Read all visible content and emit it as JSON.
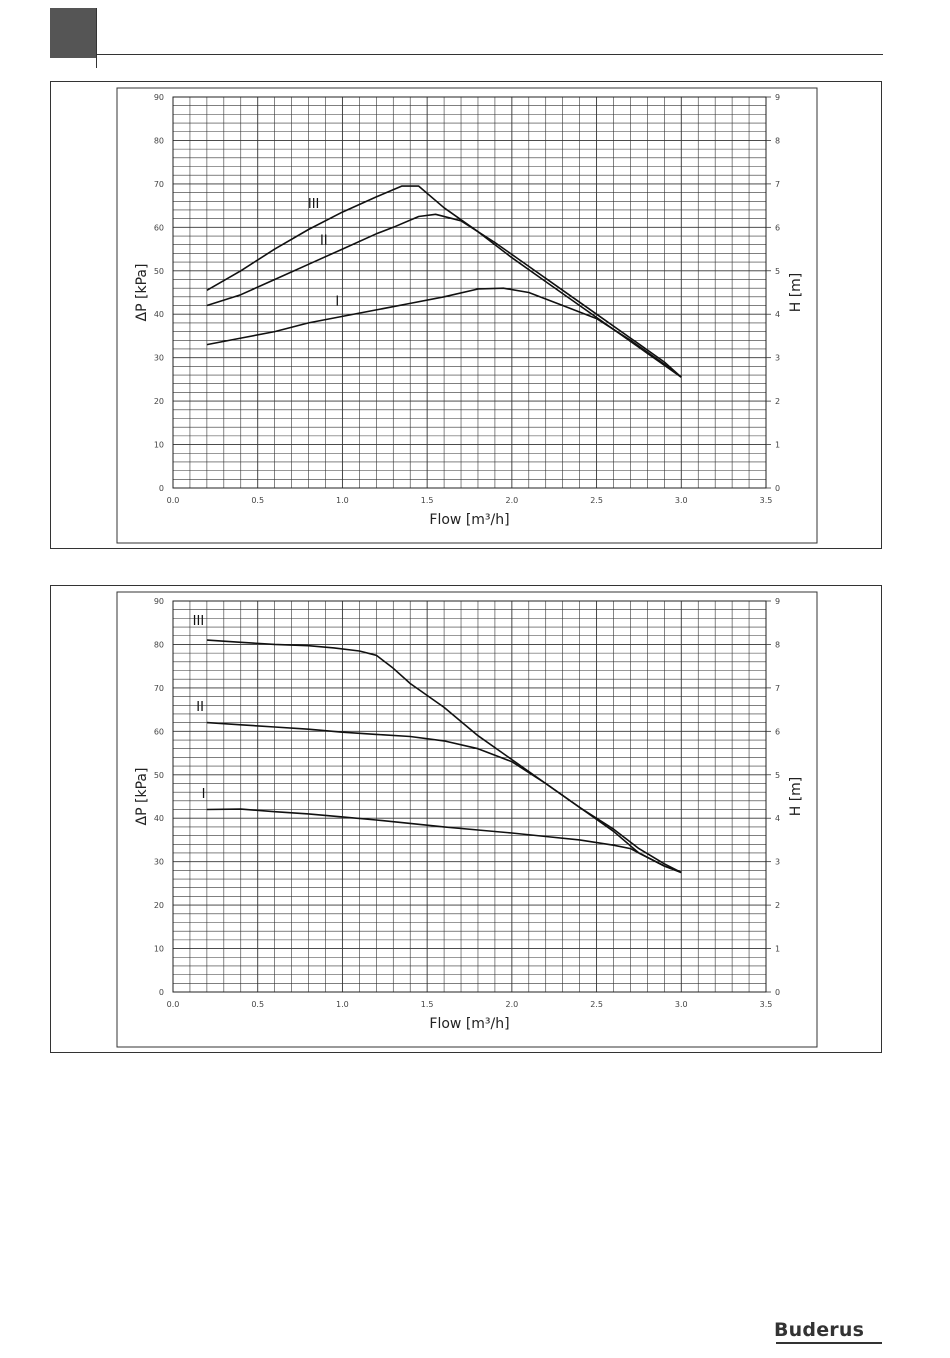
{
  "brand": {
    "name": "Buderus"
  },
  "chart_data": [
    {
      "type": "line",
      "title": "",
      "xlabel": "Flow [m³/h]",
      "ylabel": "ΔP [kPa]",
      "y2label": "H [m]",
      "xlim": [
        0,
        3.5
      ],
      "ylim": [
        0,
        90
      ],
      "y2lim": [
        0,
        9
      ],
      "xticks": [
        "0.0",
        "0.5",
        "1.0",
        "1.5",
        "2.0",
        "2.5",
        "3.0",
        "3.5"
      ],
      "yticks": [
        "0",
        "10",
        "20",
        "30",
        "40",
        "50",
        "60",
        "70",
        "80",
        "90"
      ],
      "y2ticks": [
        "0",
        "1",
        "2",
        "3",
        "4",
        "5",
        "6",
        "7",
        "8",
        "9"
      ],
      "grid": true,
      "series": [
        {
          "name": "III",
          "x": [
            0.2,
            0.4,
            0.6,
            0.8,
            1.0,
            1.2,
            1.35,
            1.45,
            1.6,
            1.8,
            2.0,
            2.2,
            2.4,
            2.6,
            2.8,
            3.0
          ],
          "y": [
            45.5,
            50,
            55,
            59.5,
            63.5,
            67,
            69.5,
            69.5,
            64.5,
            59,
            53,
            47.5,
            42,
            36.5,
            31,
            25.5
          ]
        },
        {
          "name": "II",
          "x": [
            0.2,
            0.4,
            0.6,
            0.8,
            1.0,
            1.2,
            1.3,
            1.45,
            1.55,
            1.7,
            1.9,
            2.1,
            2.3,
            2.5,
            2.7,
            2.9,
            3.0
          ],
          "y": [
            42,
            44.5,
            48,
            51.5,
            55,
            58.5,
            60,
            62.5,
            63,
            61.5,
            56.5,
            51,
            45.5,
            40,
            34.5,
            29,
            25.5
          ]
        },
        {
          "name": "I",
          "x": [
            0.2,
            0.4,
            0.6,
            0.8,
            1.0,
            1.2,
            1.4,
            1.6,
            1.8,
            1.95,
            2.1,
            2.3,
            2.5,
            2.7,
            2.9,
            3.0
          ],
          "y": [
            33,
            34.5,
            36,
            38,
            39.5,
            41,
            42.5,
            44,
            45.8,
            46,
            45,
            42,
            39,
            34,
            28.5,
            25.5
          ]
        }
      ],
      "annotations": [
        {
          "text": "III",
          "x": 0.83,
          "y": 64.5
        },
        {
          "text": "II",
          "x": 0.89,
          "y": 56
        },
        {
          "text": "I",
          "x": 0.97,
          "y": 42
        }
      ]
    },
    {
      "type": "line",
      "title": "",
      "xlabel": "Flow [m³/h]",
      "ylabel": "ΔP [kPa]",
      "y2label": "H [m]",
      "xlim": [
        0,
        3.5
      ],
      "ylim": [
        0,
        90
      ],
      "y2lim": [
        0,
        9
      ],
      "xticks": [
        "0.0",
        "0.5",
        "1.0",
        "1.5",
        "2.0",
        "2.5",
        "3.0",
        "3.5"
      ],
      "yticks": [
        "0",
        "10",
        "20",
        "30",
        "40",
        "50",
        "60",
        "70",
        "80",
        "90"
      ],
      "y2ticks": [
        "0",
        "1",
        "2",
        "3",
        "4",
        "5",
        "6",
        "7",
        "8",
        "9"
      ],
      "grid": true,
      "series": [
        {
          "name": "III",
          "x": [
            0.2,
            0.4,
            0.6,
            0.8,
            0.95,
            1.1,
            1.2,
            1.3,
            1.4,
            1.6,
            1.8,
            2.0,
            2.2,
            2.4,
            2.6,
            2.75,
            2.9,
            3.0
          ],
          "y": [
            81,
            80.5,
            80,
            79.7,
            79.2,
            78.5,
            77.5,
            74.5,
            71,
            65.5,
            59,
            53.5,
            48,
            42.5,
            37,
            32,
            29,
            27.5
          ]
        },
        {
          "name": "II",
          "x": [
            0.2,
            0.4,
            0.6,
            0.8,
            1.0,
            1.2,
            1.4,
            1.6,
            1.8,
            2.0,
            2.2,
            2.4,
            2.6,
            2.75,
            2.9,
            3.0
          ],
          "y": [
            62,
            61.5,
            61,
            60.5,
            59.8,
            59.3,
            58.8,
            57.8,
            56,
            53,
            48,
            42.5,
            37.5,
            33,
            29.5,
            27.5
          ]
        },
        {
          "name": "I",
          "x": [
            0.2,
            0.4,
            0.6,
            0.8,
            1.0,
            1.2,
            1.4,
            1.6,
            1.8,
            2.0,
            2.2,
            2.4,
            2.6,
            2.7,
            2.8,
            2.9,
            3.0
          ],
          "y": [
            42,
            42.1,
            41.5,
            41,
            40.3,
            39.6,
            38.8,
            38,
            37.3,
            36.6,
            35.8,
            35,
            33.8,
            33,
            31,
            29,
            27.5
          ]
        }
      ],
      "annotations": [
        {
          "text": "III",
          "x": 0.15,
          "y": 84.5
        },
        {
          "text": "II",
          "x": 0.16,
          "y": 64.7
        },
        {
          "text": "I",
          "x": 0.18,
          "y": 44.7
        }
      ]
    }
  ]
}
